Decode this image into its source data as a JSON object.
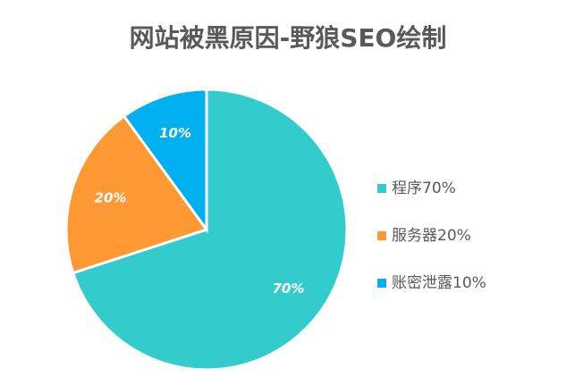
{
  "chart_data": {
    "type": "pie",
    "title": "网站被黑原因-野狼SEO绘制",
    "categories": [
      "程序70%",
      "服务器20%",
      "账密泄露10%"
    ],
    "values": [
      70,
      20,
      10
    ],
    "value_labels": [
      "70%",
      "20%",
      "10%"
    ],
    "colors": [
      "#33cccc",
      "#ff9933",
      "#00b0f0"
    ],
    "legend": "right"
  }
}
